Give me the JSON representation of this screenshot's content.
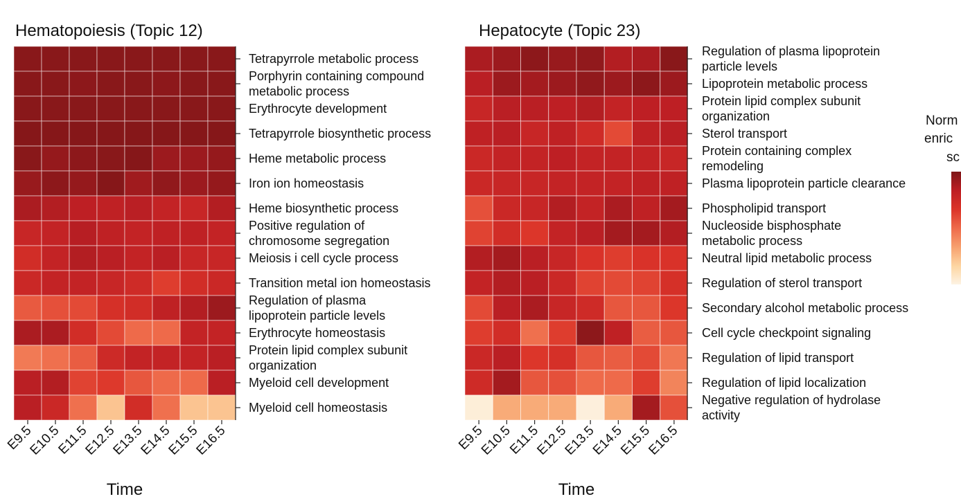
{
  "chart_data": [
    {
      "type": "heatmap",
      "title": "Hematopoiesis (Topic 12)",
      "xlabel": "Time",
      "ylabel": "",
      "x": [
        "E9.5",
        "E10.5",
        "E11.5",
        "E12.5",
        "E13.5",
        "E14.5",
        "E15.5",
        "E16.5"
      ],
      "y": [
        [
          "Tetrapyrrole metabolic process"
        ],
        [
          "Porphyrin containing compound",
          "metabolic process"
        ],
        [
          "Erythrocyte development"
        ],
        [
          "Tetrapyrrole biosynthetic process"
        ],
        [
          "Heme metabolic process"
        ],
        [
          "Iron ion homeostasis"
        ],
        [
          "Heme biosynthetic process"
        ],
        [
          "Positive regulation of",
          "chromosome segregation"
        ],
        [
          "Meiosis i cell cycle process"
        ],
        [
          "Transition metal ion homeostasis"
        ],
        [
          "Regulation of plasma",
          "lipoprotein particle levels"
        ],
        [
          "Erythrocyte homeostasis"
        ],
        [
          "Protein lipid complex subunit",
          "organization"
        ],
        [
          "Myeloid cell development"
        ],
        [
          "Myeloid cell homeostasis"
        ]
      ],
      "values": [
        [
          0.97,
          0.97,
          0.97,
          0.97,
          0.97,
          0.97,
          0.97,
          0.97
        ],
        [
          0.97,
          0.97,
          0.96,
          0.97,
          0.97,
          0.96,
          0.97,
          0.97
        ],
        [
          0.97,
          0.97,
          0.97,
          0.97,
          0.97,
          0.97,
          0.97,
          0.97
        ],
        [
          0.98,
          0.98,
          0.98,
          0.98,
          0.98,
          0.98,
          0.98,
          0.98
        ],
        [
          0.97,
          0.94,
          0.96,
          0.97,
          0.98,
          0.92,
          0.92,
          0.94
        ],
        [
          0.93,
          0.96,
          0.94,
          0.98,
          0.91,
          0.95,
          0.92,
          0.94
        ],
        [
          0.88,
          0.86,
          0.83,
          0.82,
          0.84,
          0.8,
          0.78,
          0.86
        ],
        [
          0.78,
          0.8,
          0.85,
          0.82,
          0.8,
          0.82,
          0.82,
          0.8
        ],
        [
          0.72,
          0.8,
          0.86,
          0.84,
          0.8,
          0.84,
          0.78,
          0.78
        ],
        [
          0.76,
          0.8,
          0.8,
          0.78,
          0.74,
          0.64,
          0.72,
          0.76
        ],
        [
          0.55,
          0.58,
          0.6,
          0.7,
          0.72,
          0.82,
          0.86,
          0.92
        ],
        [
          0.88,
          0.88,
          0.72,
          0.6,
          0.5,
          0.5,
          0.8,
          0.8
        ],
        [
          0.45,
          0.48,
          0.54,
          0.75,
          0.8,
          0.8,
          0.8,
          0.84
        ],
        [
          0.84,
          0.86,
          0.62,
          0.65,
          0.56,
          0.5,
          0.5,
          0.84
        ],
        [
          0.84,
          0.76,
          0.48,
          0.22,
          0.72,
          0.48,
          0.22,
          0.22
        ]
      ]
    },
    {
      "type": "heatmap",
      "title": "Hepatocyte (Topic 23)",
      "xlabel": "Time",
      "ylabel": "",
      "x": [
        "E9.5",
        "E10.5",
        "E11.5",
        "E12.5",
        "E13.5",
        "E14.5",
        "E15.5",
        "E16.5"
      ],
      "y": [
        [
          "Regulation of plasma lipoprotein",
          "particle levels"
        ],
        [
          "Lipoprotein metabolic process"
        ],
        [
          "Protein lipid complex subunit",
          "organization"
        ],
        [
          "Sterol transport"
        ],
        [
          "Protein containing complex",
          "remodeling"
        ],
        [
          "Plasma lipoprotein particle clearance"
        ],
        [
          "Phospholipid transport"
        ],
        [
          "Nucleoside bisphosphate",
          "metabolic process"
        ],
        [
          "Neutral lipid metabolic process"
        ],
        [
          "Regulation of sterol transport"
        ],
        [
          "Secondary alcohol metabolic process"
        ],
        [
          "Cell cycle checkpoint signaling"
        ],
        [
          "Regulation of lipid transport"
        ],
        [
          "Regulation of lipid localization"
        ],
        [
          "Negative regulation of hydrolase",
          "activity"
        ]
      ],
      "values": [
        [
          0.88,
          0.92,
          0.96,
          0.93,
          0.95,
          0.86,
          0.88,
          0.97
        ],
        [
          0.84,
          0.92,
          0.9,
          0.92,
          0.95,
          0.92,
          0.96,
          0.92
        ],
        [
          0.78,
          0.84,
          0.84,
          0.83,
          0.86,
          0.8,
          0.83,
          0.83
        ],
        [
          0.82,
          0.84,
          0.78,
          0.82,
          0.74,
          0.6,
          0.82,
          0.84
        ],
        [
          0.76,
          0.8,
          0.8,
          0.83,
          0.8,
          0.8,
          0.8,
          0.78
        ],
        [
          0.76,
          0.78,
          0.78,
          0.8,
          0.8,
          0.8,
          0.82,
          0.82
        ],
        [
          0.58,
          0.76,
          0.78,
          0.86,
          0.8,
          0.88,
          0.82,
          0.9
        ],
        [
          0.62,
          0.72,
          0.66,
          0.8,
          0.84,
          0.9,
          0.9,
          0.86
        ],
        [
          0.86,
          0.9,
          0.84,
          0.78,
          0.68,
          0.64,
          0.68,
          0.68
        ],
        [
          0.8,
          0.86,
          0.84,
          0.76,
          0.62,
          0.6,
          0.62,
          0.7
        ],
        [
          0.6,
          0.84,
          0.88,
          0.78,
          0.74,
          0.56,
          0.56,
          0.66
        ],
        [
          0.64,
          0.72,
          0.48,
          0.64,
          0.96,
          0.82,
          0.54,
          0.56
        ],
        [
          0.76,
          0.84,
          0.66,
          0.7,
          0.56,
          0.54,
          0.6,
          0.46
        ],
        [
          0.74,
          0.9,
          0.56,
          0.58,
          0.5,
          0.5,
          0.64,
          0.42
        ],
        [
          0.03,
          0.3,
          0.3,
          0.3,
          0.02,
          0.3,
          0.9,
          0.58
        ]
      ]
    }
  ],
  "colorbar": {
    "label": [
      "Norm",
      "enric",
      "sc"
    ],
    "colors": [
      "#fdf3e4",
      "#fdd5a1",
      "#f7a06e",
      "#ee6a4a",
      "#db3429",
      "#bd1f24",
      "#7e1618"
    ]
  }
}
